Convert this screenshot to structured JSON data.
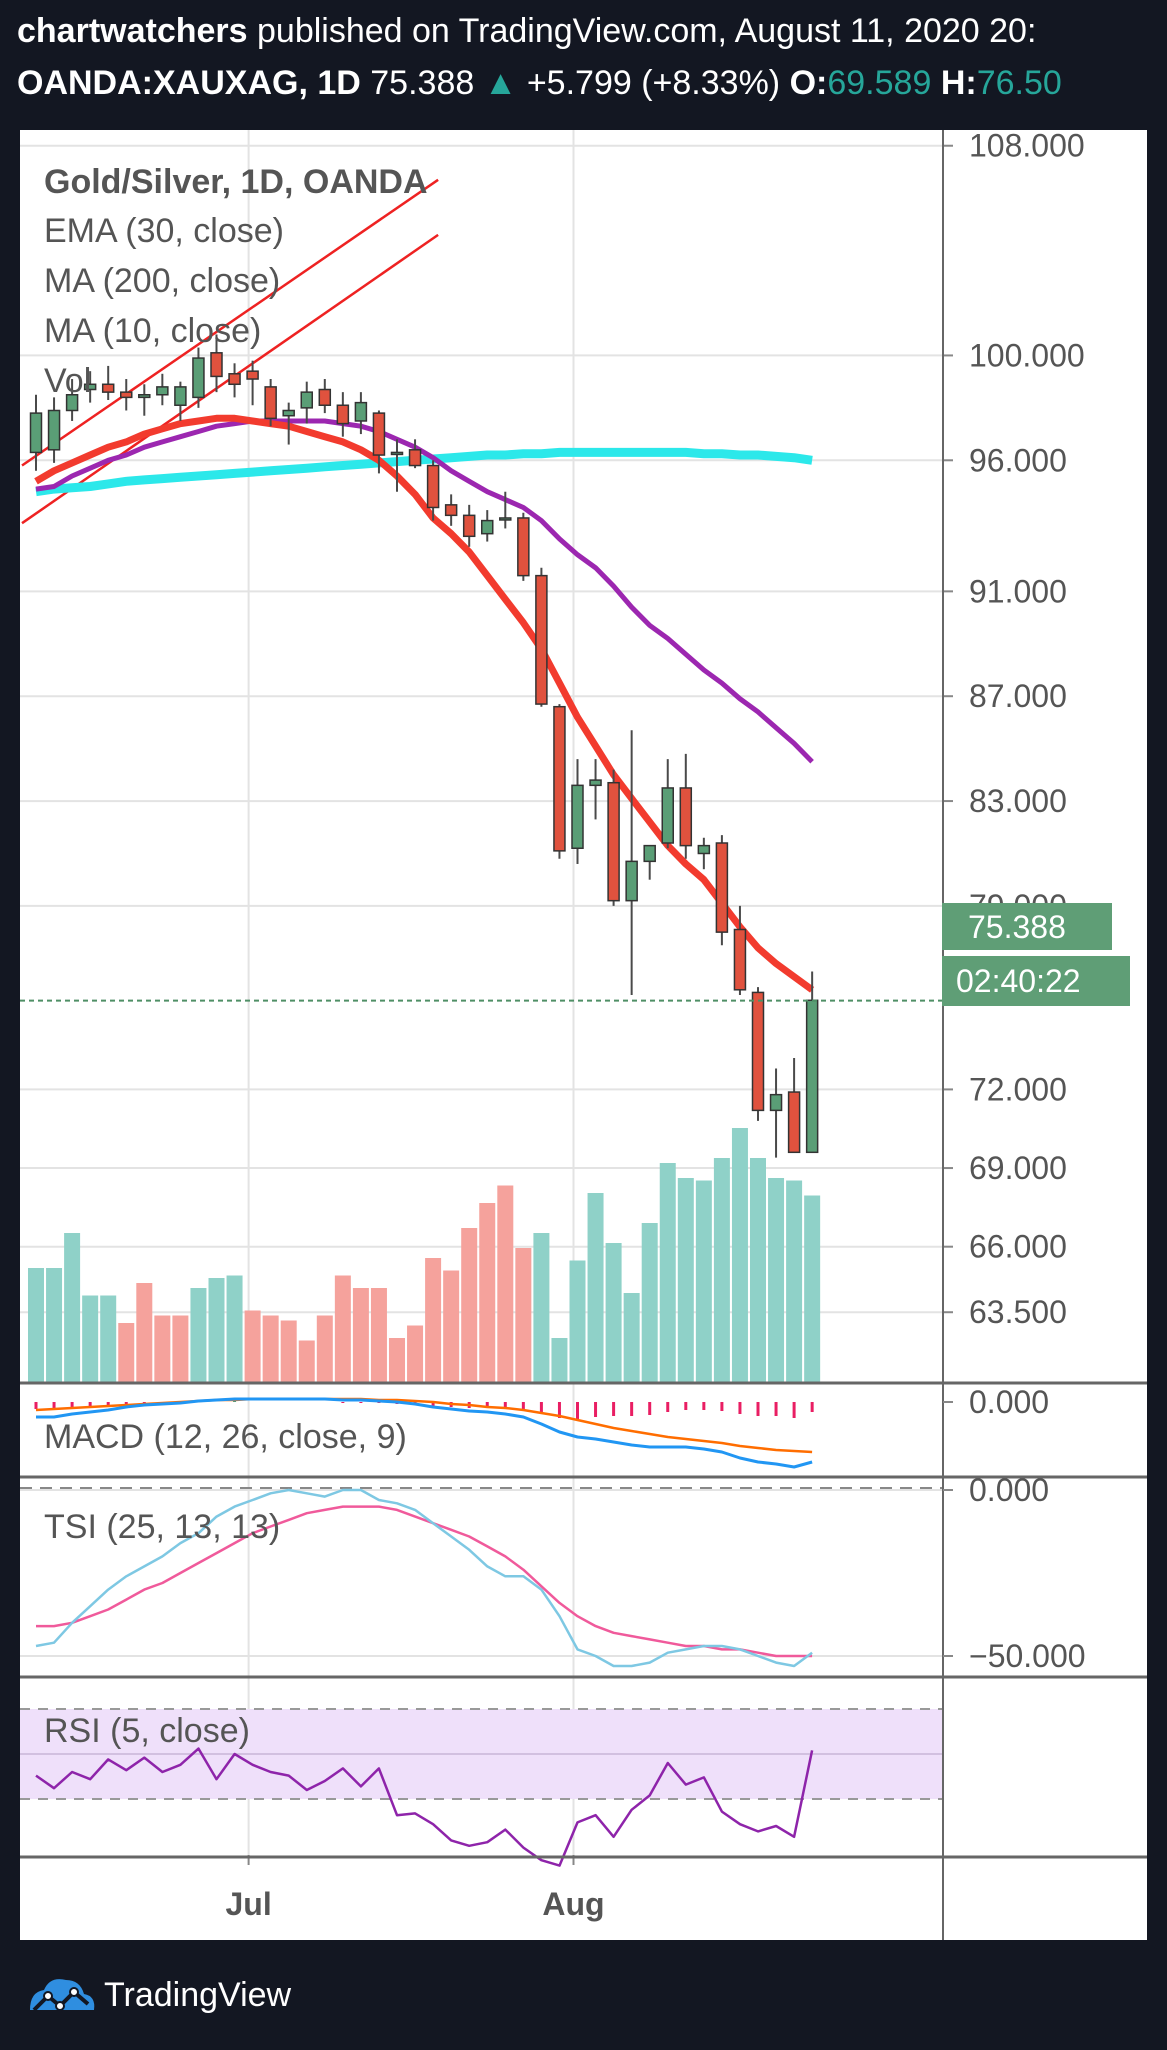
{
  "header": {
    "author": "chartwatchers",
    "published_text": "published on TradingView.com, August 11, 2020 20:",
    "symbol": "OANDA:XAUXAG, 1D",
    "last": "75.388",
    "change": "+5.799 (+8.33%)",
    "open_label": "O:",
    "open_value": "69.589",
    "high_label": "H:",
    "high_value": "76.50"
  },
  "legend": {
    "title": "Gold/Silver, 1D, OANDA",
    "ema": "EMA (30, close)",
    "ma200": "MA (200, close)",
    "ma10": "MA (10, close)",
    "vol": "Vol",
    "macd": "MACD (12, 26, close, 9)",
    "tsi": "TSI (25, 13, 13)",
    "rsi": "RSI (5, close)"
  },
  "price_badge": "75.388",
  "countdown_badge": "02:40:22",
  "footer": {
    "brand": "TradingView"
  },
  "colors": {
    "background": "#ffffff",
    "page": "#131722",
    "up": "#5a9e76",
    "down": "#e0523e",
    "ema30": "#9c27b0",
    "ma10": "#f23b2e",
    "ma200": "#2ce8ea",
    "volume_up": "#8fd1c8",
    "volume_down": "#f5a29c",
    "macd_line": "#2196f3",
    "signal_line": "#ff6d00",
    "tsi_line": "#7ec8e3",
    "tsi_signal": "#f05a9b",
    "rsi_line": "#8e24aa",
    "rsi_band": "#efe0fa"
  },
  "chart_data": {
    "type": "candlestick",
    "title": "Gold/Silver, 1D, OANDA",
    "x_ticks": [
      "Jul",
      "Aug"
    ],
    "y_ticks": [
      "108.000",
      "100.000",
      "96.000",
      "91.000",
      "87.000",
      "83.000",
      "79.000",
      "72.000",
      "69.000",
      "66.000",
      "63.500"
    ],
    "price_range": [
      60.8,
      108.6
    ],
    "last_price": 75.388,
    "candles": [
      {
        "o": 96.3,
        "h": 98.5,
        "l": 95.6,
        "c": 97.8
      },
      {
        "o": 96.4,
        "h": 98.4,
        "l": 95.9,
        "c": 97.9
      },
      {
        "o": 97.9,
        "h": 99.1,
        "l": 97.5,
        "c": 98.5
      },
      {
        "o": 98.7,
        "h": 99.4,
        "l": 98.2,
        "c": 98.9
      },
      {
        "o": 98.9,
        "h": 99.6,
        "l": 98.3,
        "c": 98.6
      },
      {
        "o": 98.6,
        "h": 99.1,
        "l": 97.9,
        "c": 98.4
      },
      {
        "o": 98.4,
        "h": 98.9,
        "l": 97.7,
        "c": 98.5
      },
      {
        "o": 98.5,
        "h": 99.3,
        "l": 98.1,
        "c": 98.8
      },
      {
        "o": 98.1,
        "h": 99.0,
        "l": 97.5,
        "c": 98.8
      },
      {
        "o": 98.4,
        "h": 100.3,
        "l": 98.0,
        "c": 99.9
      },
      {
        "o": 100.1,
        "h": 100.8,
        "l": 98.6,
        "c": 99.2
      },
      {
        "o": 99.3,
        "h": 99.7,
        "l": 98.4,
        "c": 98.9
      },
      {
        "o": 99.4,
        "h": 99.8,
        "l": 98.1,
        "c": 99.1
      },
      {
        "o": 98.8,
        "h": 99.1,
        "l": 97.3,
        "c": 97.6
      },
      {
        "o": 97.7,
        "h": 98.2,
        "l": 96.6,
        "c": 97.9
      },
      {
        "o": 98.0,
        "h": 99.0,
        "l": 97.4,
        "c": 98.6
      },
      {
        "o": 98.7,
        "h": 99.1,
        "l": 97.8,
        "c": 98.1
      },
      {
        "o": 98.1,
        "h": 98.6,
        "l": 96.9,
        "c": 97.4
      },
      {
        "o": 97.5,
        "h": 98.6,
        "l": 97.0,
        "c": 98.2
      },
      {
        "o": 97.8,
        "h": 97.9,
        "l": 95.5,
        "c": 96.2
      },
      {
        "o": 96.3,
        "h": 96.8,
        "l": 94.8,
        "c": 96.3
      },
      {
        "o": 96.4,
        "h": 96.8,
        "l": 95.7,
        "c": 95.8
      },
      {
        "o": 95.8,
        "h": 96.0,
        "l": 93.7,
        "c": 94.2
      },
      {
        "o": 94.3,
        "h": 94.7,
        "l": 93.5,
        "c": 93.9
      },
      {
        "o": 93.9,
        "h": 94.3,
        "l": 92.7,
        "c": 93.1
      },
      {
        "o": 93.2,
        "h": 94.1,
        "l": 92.9,
        "c": 93.7
      },
      {
        "o": 93.8,
        "h": 94.8,
        "l": 93.4,
        "c": 93.8
      },
      {
        "o": 93.8,
        "h": 94.0,
        "l": 91.4,
        "c": 91.6
      },
      {
        "o": 91.6,
        "h": 91.9,
        "l": 86.6,
        "c": 86.7
      },
      {
        "o": 86.6,
        "h": 86.7,
        "l": 80.8,
        "c": 81.1
      },
      {
        "o": 81.2,
        "h": 84.6,
        "l": 80.6,
        "c": 83.6
      },
      {
        "o": 83.6,
        "h": 84.6,
        "l": 82.3,
        "c": 83.8
      },
      {
        "o": 83.7,
        "h": 84.2,
        "l": 79.0,
        "c": 79.2
      },
      {
        "o": 79.2,
        "h": 85.7,
        "l": 75.6,
        "c": 80.7
      },
      {
        "o": 80.7,
        "h": 81.3,
        "l": 80.0,
        "c": 81.3
      },
      {
        "o": 81.4,
        "h": 84.6,
        "l": 81.2,
        "c": 83.5
      },
      {
        "o": 83.5,
        "h": 84.8,
        "l": 80.8,
        "c": 81.3
      },
      {
        "o": 81.0,
        "h": 81.6,
        "l": 80.4,
        "c": 81.3
      },
      {
        "o": 81.4,
        "h": 81.7,
        "l": 77.5,
        "c": 78.0
      },
      {
        "o": 78.1,
        "h": 79.0,
        "l": 75.6,
        "c": 75.8
      },
      {
        "o": 75.7,
        "h": 75.9,
        "l": 70.8,
        "c": 71.2
      },
      {
        "o": 71.2,
        "h": 72.8,
        "l": 69.4,
        "c": 71.8
      },
      {
        "o": 71.9,
        "h": 73.2,
        "l": 69.6,
        "c": 69.6
      },
      {
        "o": 69.6,
        "h": 76.5,
        "l": 69.6,
        "c": 75.4
      }
    ],
    "volume": [
      0.3,
      0.3,
      0.44,
      0.19,
      0.19,
      -0.08,
      -0.24,
      -0.11,
      -0.11,
      0.22,
      0.26,
      0.27,
      -0.13,
      -0.11,
      -0.09,
      -0.01,
      -0.11,
      -0.27,
      -0.22,
      -0.22,
      -0.02,
      -0.07,
      -0.34,
      -0.29,
      -0.46,
      -0.56,
      -0.63,
      -0.38,
      0.44,
      0.02,
      0.33,
      0.6,
      0.4,
      0.2,
      0.48,
      0.72,
      0.66,
      0.65,
      0.74,
      0.86,
      0.74,
      0.66,
      0.65,
      0.59
    ],
    "ema30": [
      94.9,
      95.0,
      95.4,
      95.7,
      96.0,
      96.2,
      96.5,
      96.7,
      96.9,
      97.1,
      97.3,
      97.4,
      97.5,
      97.5,
      97.5,
      97.5,
      97.5,
      97.4,
      97.3,
      97.1,
      96.8,
      96.5,
      96.1,
      95.6,
      95.2,
      94.8,
      94.5,
      94.2,
      93.7,
      93.0,
      92.4,
      91.9,
      91.2,
      90.4,
      89.7,
      89.2,
      88.6,
      88.0,
      87.5,
      86.9,
      86.4,
      85.8,
      85.2,
      84.5
    ],
    "ma10": [
      95.2,
      95.6,
      95.9,
      96.2,
      96.5,
      96.7,
      97.0,
      97.2,
      97.4,
      97.5,
      97.6,
      97.6,
      97.5,
      97.4,
      97.3,
      97.1,
      96.9,
      96.7,
      96.4,
      96.0,
      95.4,
      94.7,
      93.8,
      93.2,
      92.5,
      91.6,
      90.7,
      89.8,
      88.8,
      87.5,
      86.2,
      85.1,
      84.0,
      83.1,
      82.2,
      81.3,
      80.6,
      80.0,
      79.1,
      78.2,
      77.4,
      76.8,
      76.3,
      75.8
    ],
    "ma200": [
      94.8,
      94.9,
      94.95,
      95.0,
      95.1,
      95.2,
      95.25,
      95.3,
      95.35,
      95.4,
      95.45,
      95.5,
      95.55,
      95.6,
      95.65,
      95.7,
      95.75,
      95.8,
      95.85,
      95.9,
      95.95,
      96.0,
      96.05,
      96.1,
      96.15,
      96.2,
      96.2,
      96.25,
      96.25,
      96.3,
      96.3,
      96.3,
      96.3,
      96.3,
      96.3,
      96.3,
      96.3,
      96.25,
      96.25,
      96.2,
      96.2,
      96.15,
      96.1,
      96.0
    ],
    "channel": [
      {
        "from": [
          0,
          93.6
        ],
        "to": [
          22,
          104.6
        ]
      },
      {
        "from": [
          0,
          95.8
        ],
        "to": [
          22,
          106.7
        ]
      }
    ],
    "macd": {
      "y_tick": "0.000",
      "macd": [
        -0.15,
        -0.15,
        -0.12,
        -0.1,
        -0.08,
        -0.05,
        -0.03,
        -0.02,
        -0.01,
        0.01,
        0.02,
        0.03,
        0.03,
        0.03,
        0.03,
        0.03,
        0.03,
        0.02,
        0.02,
        0.01,
        0.0,
        -0.02,
        -0.05,
        -0.07,
        -0.09,
        -0.1,
        -0.12,
        -0.15,
        -0.22,
        -0.3,
        -0.35,
        -0.37,
        -0.4,
        -0.43,
        -0.45,
        -0.45,
        -0.45,
        -0.47,
        -0.5,
        -0.56,
        -0.6,
        -0.62,
        -0.65,
        -0.6
      ],
      "signal": [
        -0.08,
        -0.07,
        -0.06,
        -0.05,
        -0.04,
        -0.03,
        -0.02,
        -0.01,
        0.0,
        0.01,
        0.02,
        0.02,
        0.03,
        0.03,
        0.03,
        0.03,
        0.03,
        0.03,
        0.03,
        0.02,
        0.02,
        0.01,
        0.0,
        -0.02,
        -0.03,
        -0.05,
        -0.06,
        -0.08,
        -0.11,
        -0.14,
        -0.18,
        -0.22,
        -0.26,
        -0.29,
        -0.32,
        -0.35,
        -0.37,
        -0.39,
        -0.41,
        -0.44,
        -0.46,
        -0.48,
        -0.49,
        -0.5
      ]
    },
    "tsi": {
      "y_ticks": [
        "0.000",
        "-50.000"
      ],
      "tsi": [
        -47,
        -46,
        -40,
        -35,
        -30,
        -26,
        -23,
        -20,
        -16,
        -13,
        -8,
        -5,
        -3,
        -1,
        0,
        -1,
        -2,
        0,
        0,
        -3,
        -4,
        -6,
        -10,
        -14,
        -18,
        -23,
        -26,
        -26,
        -30,
        -38,
        -48,
        -50,
        -53,
        -53,
        -52,
        -49,
        -48,
        -47,
        -47,
        -48,
        -50,
        -52,
        -53,
        -49
      ],
      "signal": [
        -41,
        -41,
        -40,
        -38,
        -36,
        -33,
        -30,
        -28,
        -25,
        -22,
        -19,
        -16,
        -13,
        -11,
        -9,
        -7,
        -6,
        -5,
        -5,
        -5,
        -6,
        -8,
        -10,
        -12,
        -14,
        -17,
        -20,
        -24,
        -29,
        -34,
        -38,
        -41,
        -43,
        -44,
        -45,
        -46,
        -47,
        -47,
        -48,
        -48,
        -49,
        -50,
        -50,
        -50
      ]
    },
    "rsi": {
      "band": [
        30,
        70
      ],
      "values": [
        58,
        51,
        60,
        56,
        67,
        61,
        68,
        60,
        64,
        73,
        56,
        70,
        64,
        60,
        58,
        50,
        55,
        62,
        52,
        62,
        36,
        37,
        31,
        22,
        19,
        21,
        28,
        18,
        11,
        8,
        32,
        36,
        24,
        39,
        47,
        65,
        53,
        57,
        38,
        31,
        27,
        30,
        24,
        72
      ]
    }
  }
}
